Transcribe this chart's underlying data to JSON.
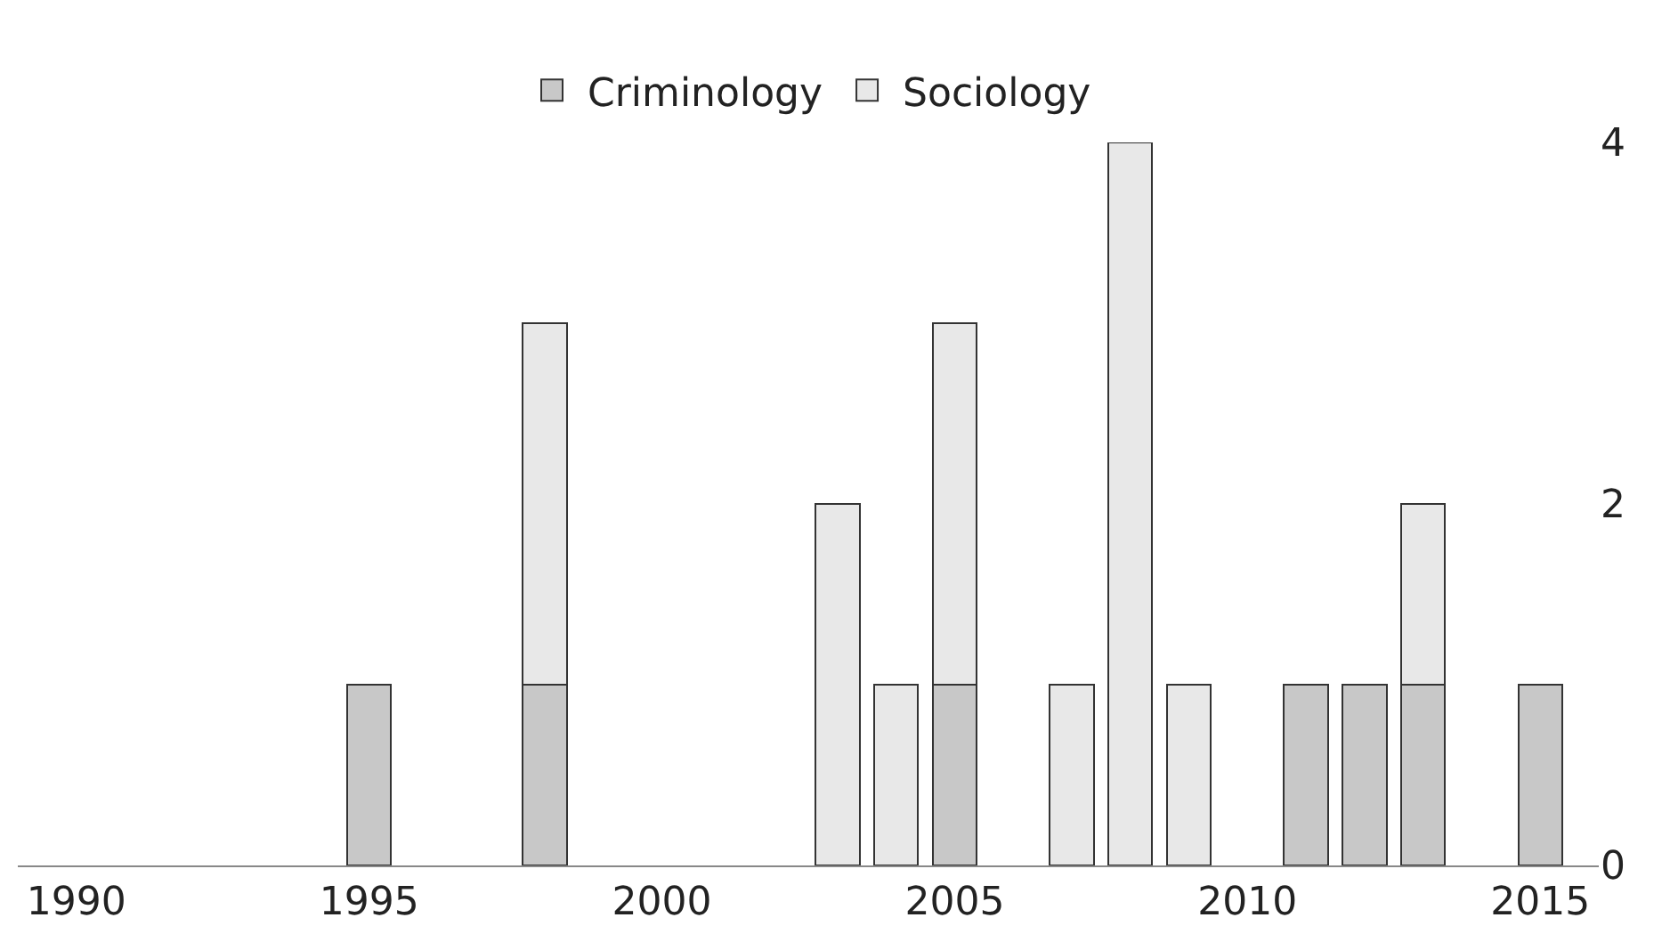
{
  "chart_data": {
    "type": "bar",
    "stacked": true,
    "x": [
      1995,
      1998,
      2003,
      2004,
      2005,
      2007,
      2008,
      2009,
      2011,
      2012,
      2013,
      2015
    ],
    "series": [
      {
        "name": "Criminology",
        "color": "#c8c8c8",
        "values": [
          1,
          1,
          null,
          null,
          1,
          null,
          null,
          null,
          1,
          1,
          1,
          1
        ]
      },
      {
        "name": "Sociology",
        "color": "#e8e8e8",
        "values": [
          null,
          2,
          2,
          1,
          2,
          1,
          4,
          1,
          null,
          null,
          1,
          null
        ]
      }
    ],
    "xlim": [
      1989,
      2016
    ],
    "xticks": [
      1990,
      1995,
      2000,
      2005,
      2010,
      2015
    ],
    "ylim": [
      0,
      4
    ],
    "yticks": [
      0,
      2,
      4
    ],
    "legend": "top"
  }
}
